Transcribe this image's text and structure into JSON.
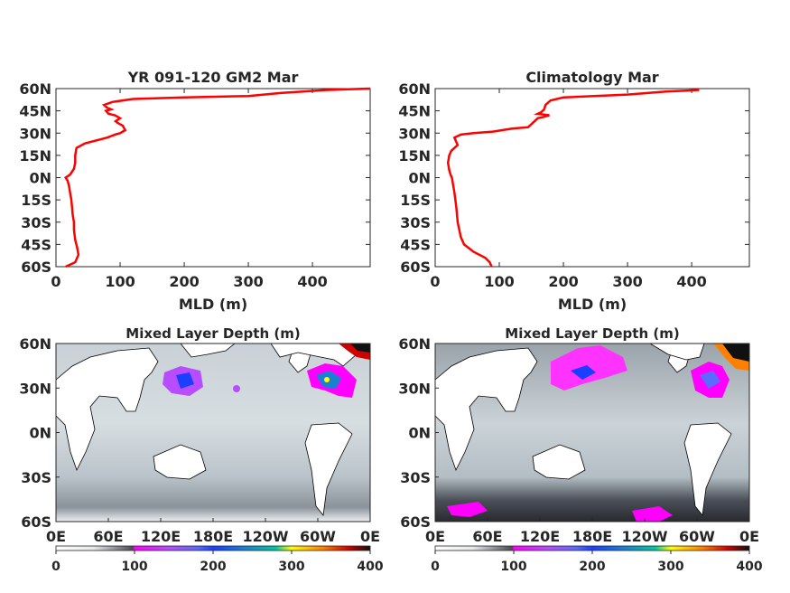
{
  "chart_data": [
    {
      "type": "line",
      "title": "YR 091-120 GM2 Mar",
      "xlabel": "MLD (m)",
      "xlim": [
        0,
        490
      ],
      "ylim": [
        -60,
        60
      ],
      "xticks": [
        "0",
        "100",
        "200",
        "300",
        "400"
      ],
      "yticks": [
        "60N",
        "45N",
        "30N",
        "15N",
        "0N",
        "15S",
        "30S",
        "45S",
        "60S"
      ],
      "color": "#ff0000",
      "series": [
        {
          "x": [
            15,
            30,
            35,
            33,
            30,
            28,
            28,
            26,
            25,
            24,
            22,
            20,
            18,
            15,
            22,
            28,
            30,
            30,
            32,
            45,
            80,
            92,
            100,
            108,
            104,
            96,
            93,
            100,
            92,
            82,
            78,
            86,
            80,
            75,
            88,
            120,
            200,
            300,
            350,
            420,
            490
          ],
          "y": [
            -60,
            -57,
            -52,
            -47,
            -42,
            -35,
            -30,
            -25,
            -20,
            -15,
            -10,
            -5,
            -2,
            0,
            2,
            6,
            10,
            15,
            20,
            23,
            27,
            29,
            30,
            32,
            35,
            37,
            38,
            40,
            42,
            43,
            45,
            46,
            47,
            49,
            51,
            53,
            54,
            55,
            57,
            59,
            60
          ]
        }
      ]
    },
    {
      "type": "line",
      "title": "Climatology Mar",
      "xlabel": "MLD (m)",
      "xlim": [
        0,
        490
      ],
      "ylim": [
        -60,
        60
      ],
      "xticks": [
        "0",
        "100",
        "200",
        "300",
        "400"
      ],
      "yticks": [
        "60N",
        "45N",
        "30N",
        "15N",
        "0N",
        "15S",
        "30S",
        "45S",
        "60S"
      ],
      "color": "#ff0000",
      "series": [
        {
          "x": [
            88,
            85,
            78,
            60,
            45,
            40,
            35,
            33,
            30,
            28,
            26,
            24,
            22,
            20,
            22,
            25,
            30,
            35,
            32,
            30,
            40,
            60,
            90,
            120,
            145,
            150,
            155,
            160,
            170,
            178,
            160,
            165,
            170,
            172,
            180,
            200,
            300,
            360,
            410,
            410
          ],
          "y": [
            -60,
            -57,
            -54,
            -50,
            -45,
            -40,
            -30,
            -20,
            -10,
            -5,
            0,
            2,
            5,
            10,
            15,
            18,
            20,
            22,
            25,
            27,
            29,
            30,
            31,
            33,
            34,
            36,
            38,
            40,
            41,
            42,
            43,
            44,
            46,
            49,
            52,
            54,
            56,
            58,
            59,
            60
          ]
        }
      ]
    },
    {
      "type": "heatmap",
      "title": "Mixed Layer Depth (m)",
      "yticks": [
        "60N",
        "30N",
        "0N",
        "30S",
        "60S"
      ],
      "xticks": [
        "0E",
        "60E",
        "120E",
        "180E",
        "120W",
        "60W",
        "0E"
      ],
      "colorbar_ticks": [
        "0",
        "100",
        "200",
        "300",
        "400"
      ],
      "clim": [
        0,
        400
      ]
    },
    {
      "type": "heatmap",
      "title": "Mixed Layer Depth (m)",
      "yticks": [
        "60N",
        "30N",
        "0N",
        "30S",
        "60S"
      ],
      "xticks": [
        "0E",
        "60E",
        "120E",
        "180E",
        "120W",
        "60W",
        "0E"
      ],
      "colorbar_ticks": [
        "0",
        "100",
        "200",
        "300",
        "400"
      ],
      "clim": [
        0,
        400
      ]
    }
  ]
}
